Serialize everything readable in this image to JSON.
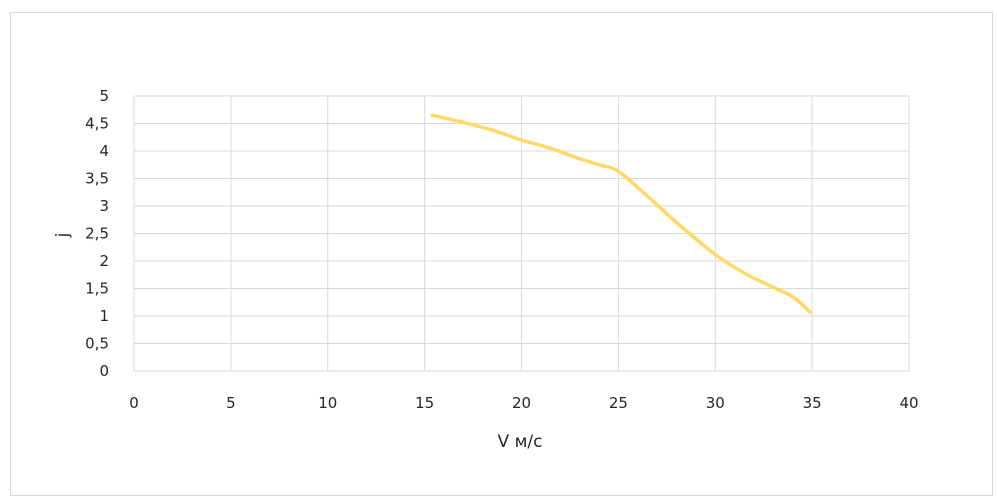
{
  "chart_data": {
    "type": "line",
    "title": "",
    "xlabel": "V м/с",
    "ylabel": "j",
    "xlim": [
      0,
      40
    ],
    "ylim": [
      0,
      5
    ],
    "x_ticks": [
      0,
      5,
      10,
      15,
      20,
      25,
      30,
      35,
      40
    ],
    "y_ticks": [
      0,
      0.5,
      1,
      1.5,
      2,
      2.5,
      3,
      3.5,
      4,
      4.5,
      5
    ],
    "x_tick_labels": [
      "0",
      "5",
      "10",
      "15",
      "20",
      "25",
      "30",
      "35",
      "40"
    ],
    "y_tick_labels": [
      "0",
      "0,5",
      "1",
      "1,5",
      "2",
      "2,5",
      "3",
      "3,5",
      "4",
      "4,5",
      "5"
    ],
    "grid": true,
    "legend": "none",
    "series": [
      {
        "color": "#ffd966",
        "x": [
          15.4,
          17,
          18.5,
          20,
          21.5,
          23,
          24,
          25,
          26.5,
          28,
          30,
          31.5,
          33,
          34,
          34.9
        ],
        "y": [
          4.65,
          4.52,
          4.38,
          4.2,
          4.05,
          3.86,
          3.75,
          3.63,
          3.18,
          2.7,
          2.12,
          1.78,
          1.52,
          1.35,
          1.07
        ]
      }
    ]
  }
}
